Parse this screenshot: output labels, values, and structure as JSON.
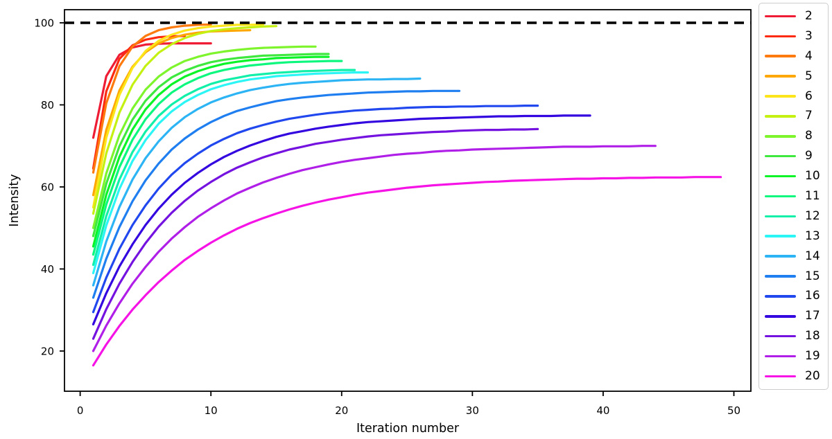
{
  "chart_data": {
    "type": "line",
    "title": "",
    "xlabel": "Iteration number",
    "ylabel": "Intensity",
    "x_ticks": [
      0,
      10,
      20,
      30,
      40,
      50
    ],
    "y_ticks": [
      20,
      40,
      60,
      80,
      100
    ],
    "xlim": [
      -1.2,
      51.3
    ],
    "ylim": [
      10.2,
      103.2
    ],
    "grid": false,
    "legend_position": "outside-right",
    "reference_line": {
      "y": 100,
      "color": "#000000",
      "style": "dashed"
    },
    "x_start": 1,
    "x_step": 1,
    "series": [
      {
        "name": "2",
        "color": "#ee1d35",
        "values": [
          72.0,
          87.0,
          92.2,
          94.0,
          94.7,
          94.9,
          95.0,
          95.0,
          95.0,
          95.0
        ]
      },
      {
        "name": "3",
        "color": "#fd2a12",
        "values": [
          64.5,
          83.3,
          91.2,
          94.5,
          95.9,
          96.5,
          96.7,
          96.8
        ]
      },
      {
        "name": "4",
        "color": "#fd7a0e",
        "values": [
          63.5,
          80.4,
          89.4,
          94.2,
          96.8,
          98.2,
          98.9,
          99.3,
          99.5,
          99.6
        ]
      },
      {
        "name": "5",
        "color": "#fda702",
        "values": [
          58.0,
          73.9,
          83.5,
          89.3,
          92.8,
          95.0,
          96.3,
          97.1,
          97.6,
          97.9,
          98.0,
          98.1,
          98.2
        ]
      },
      {
        "name": "6",
        "color": "#fce51b",
        "values": [
          55.0,
          72.0,
          82.4,
          89.0,
          93.1,
          95.6,
          97.1,
          98.1,
          98.7,
          99.1,
          99.3,
          99.5,
          99.5,
          99.6
        ]
      },
      {
        "name": "7",
        "color": "#c4f111",
        "values": [
          53.5,
          68.2,
          78.1,
          84.9,
          89.5,
          92.7,
          94.8,
          96.3,
          97.3,
          98.0,
          98.4,
          98.7,
          98.9,
          99.1,
          99.2
        ]
      },
      {
        "name": "8",
        "color": "#7df42c",
        "values": [
          50.0,
          63.3,
          72.6,
          79.1,
          83.7,
          86.9,
          89.1,
          90.7,
          91.7,
          92.5,
          93.0,
          93.4,
          93.7,
          93.9,
          94.0,
          94.1,
          94.2,
          94.2
        ]
      },
      {
        "name": "9",
        "color": "#3fe83e",
        "values": [
          48.0,
          60.8,
          69.9,
          76.4,
          81.0,
          84.3,
          86.7,
          88.3,
          89.5,
          90.4,
          91.0,
          91.4,
          91.7,
          92.0,
          92.1,
          92.2,
          92.3,
          92.4,
          92.4
        ]
      },
      {
        "name": "10",
        "color": "#0bf428",
        "values": [
          45.5,
          58.1,
          67.3,
          74.0,
          78.9,
          82.4,
          85.0,
          86.9,
          88.2,
          89.2,
          90.0,
          90.5,
          90.9,
          91.1,
          91.4,
          91.5,
          91.6,
          91.7,
          91.7
        ]
      },
      {
        "name": "11",
        "color": "#0cf77e",
        "values": [
          43.5,
          55.7,
          64.8,
          71.5,
          76.5,
          80.2,
          83.0,
          85.0,
          86.5,
          87.7,
          88.5,
          89.1,
          89.6,
          89.9,
          90.2,
          90.4,
          90.5,
          90.6,
          90.7,
          90.7
        ]
      },
      {
        "name": "12",
        "color": "#12efa9",
        "values": [
          41.0,
          52.9,
          61.8,
          68.5,
          73.5,
          77.3,
          80.1,
          82.2,
          83.8,
          85.1,
          86.0,
          86.6,
          87.2,
          87.5,
          87.8,
          88.0,
          88.2,
          88.3,
          88.4,
          88.5,
          88.5
        ]
      },
      {
        "name": "13",
        "color": "#2bf5f5",
        "values": [
          39.0,
          50.6,
          59.5,
          66.3,
          71.4,
          75.4,
          78.4,
          80.7,
          82.4,
          83.8,
          84.8,
          85.6,
          86.2,
          86.6,
          87.0,
          87.2,
          87.4,
          87.6,
          87.7,
          87.8,
          87.9,
          87.9
        ]
      },
      {
        "name": "14",
        "color": "#2cb4f4",
        "values": [
          36.0,
          46.7,
          55.1,
          61.8,
          67.0,
          71.1,
          74.4,
          77.0,
          79.0,
          80.6,
          81.8,
          82.8,
          83.6,
          84.2,
          84.7,
          85.1,
          85.4,
          85.6,
          85.8,
          86.0,
          86.1,
          86.2,
          86.2,
          86.3,
          86.3,
          86.4
        ]
      },
      {
        "name": "15",
        "color": "#1f7ef0",
        "values": [
          33.0,
          42.5,
          50.2,
          56.5,
          61.6,
          65.7,
          69.1,
          71.8,
          74.0,
          75.8,
          77.3,
          78.5,
          79.4,
          80.2,
          80.9,
          81.4,
          81.8,
          82.1,
          82.4,
          82.6,
          82.8,
          83.0,
          83.1,
          83.2,
          83.3,
          83.3,
          83.4,
          83.4,
          83.4
        ]
      },
      {
        "name": "16",
        "color": "#2148ee",
        "values": [
          29.5,
          37.9,
          44.9,
          50.7,
          55.5,
          59.6,
          63.0,
          65.8,
          68.1,
          70.1,
          71.7,
          73.1,
          74.2,
          75.1,
          75.9,
          76.6,
          77.1,
          77.6,
          78.0,
          78.3,
          78.6,
          78.8,
          79.0,
          79.1,
          79.3,
          79.4,
          79.5,
          79.5,
          79.6,
          79.6,
          79.7,
          79.7,
          79.7,
          79.8,
          79.8
        ]
      },
      {
        "name": "17",
        "color": "#3306e0",
        "values": [
          26.5,
          34.1,
          40.6,
          46.0,
          50.7,
          54.7,
          58.1,
          61.0,
          63.4,
          65.5,
          67.3,
          68.8,
          70.1,
          71.2,
          72.2,
          73.0,
          73.6,
          74.2,
          74.7,
          75.1,
          75.5,
          75.8,
          76.0,
          76.2,
          76.4,
          76.6,
          76.7,
          76.8,
          76.9,
          77.0,
          77.1,
          77.2,
          77.2,
          77.3,
          77.3,
          77.3,
          77.4,
          77.4,
          77.4
        ]
      },
      {
        "name": "18",
        "color": "#7412e0",
        "values": [
          23.0,
          30.2,
          36.4,
          41.7,
          46.3,
          50.3,
          53.7,
          56.6,
          59.1,
          61.2,
          63.1,
          64.7,
          66.0,
          67.2,
          68.2,
          69.1,
          69.8,
          70.5,
          71.0,
          71.5,
          71.9,
          72.3,
          72.6,
          72.8,
          73.0,
          73.2,
          73.4,
          73.5,
          73.7,
          73.8,
          73.9,
          73.9,
          74.0,
          74.0,
          74.1
        ]
      },
      {
        "name": "19",
        "color": "#b01fe8",
        "values": [
          20.0,
          26.2,
          31.6,
          36.4,
          40.5,
          44.2,
          47.4,
          50.2,
          52.7,
          54.8,
          56.7,
          58.4,
          59.8,
          61.1,
          62.2,
          63.2,
          64.1,
          64.8,
          65.5,
          66.1,
          66.6,
          67.0,
          67.4,
          67.8,
          68.1,
          68.3,
          68.6,
          68.8,
          68.9,
          69.1,
          69.2,
          69.3,
          69.4,
          69.5,
          69.6,
          69.7,
          69.8,
          69.8,
          69.8,
          69.9,
          69.9,
          69.9,
          70.0,
          70.0
        ]
      },
      {
        "name": "20",
        "color": "#f513e6",
        "values": [
          16.5,
          21.6,
          26.1,
          30.1,
          33.6,
          36.8,
          39.6,
          42.2,
          44.4,
          46.4,
          48.2,
          49.8,
          51.2,
          52.4,
          53.5,
          54.5,
          55.4,
          56.2,
          56.9,
          57.5,
          58.1,
          58.6,
          59.0,
          59.4,
          59.8,
          60.1,
          60.4,
          60.6,
          60.8,
          61.0,
          61.2,
          61.3,
          61.5,
          61.6,
          61.7,
          61.8,
          61.9,
          62.0,
          62.0,
          62.1,
          62.1,
          62.2,
          62.2,
          62.3,
          62.3,
          62.3,
          62.4,
          62.4,
          62.4
        ]
      }
    ]
  },
  "colors": {
    "axis": "#000000",
    "background": "#ffffff",
    "legend_border": "#cccccc"
  }
}
